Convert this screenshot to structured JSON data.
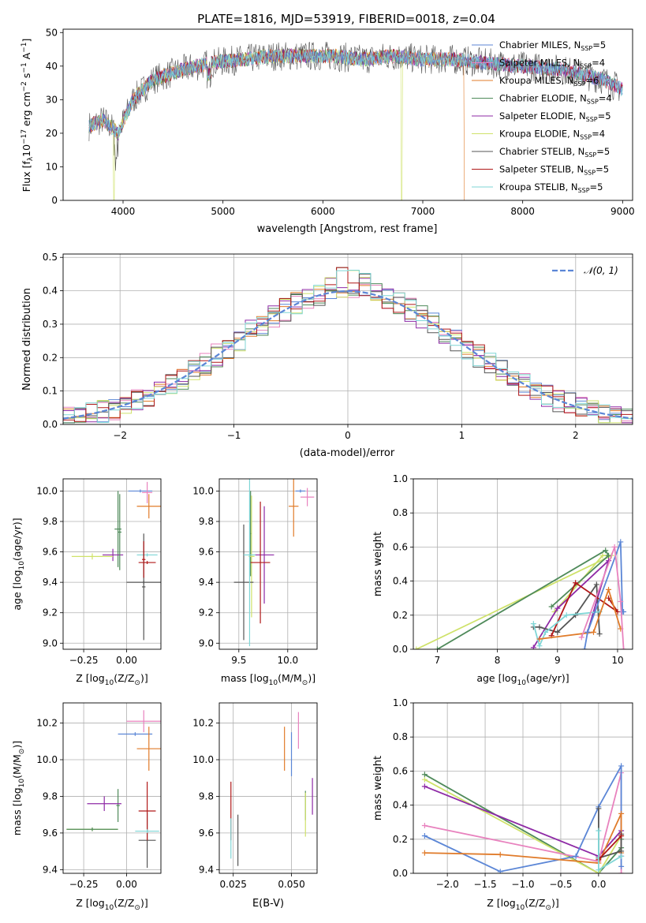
{
  "colors": {
    "chabrier_miles": "#5b86d6",
    "salpeter_miles": "#e882be",
    "kroupa_miles": "#e07b2a",
    "chabrier_elodie": "#4f8a5a",
    "salpeter_elodie": "#8e2aa6",
    "kroupa_elodie": "#cfe26a",
    "chabrier_stelib": "#555555",
    "salpeter_stelib": "#b01818",
    "kroupa_stelib": "#7fd6d6",
    "normal": "#5b86d6",
    "grid": "#b0b0b0"
  },
  "chart_data": [
    {
      "id": "spectrum",
      "type": "line",
      "title": "PLATE=1816, MJD=53919, FIBERID=0018, z=0.04",
      "xlabel": "wavelength [Angstrom, rest frame]",
      "ylabel": "Flux [f_λ10⁻¹⁷ erg cm⁻² s⁻¹ A⁻¹]",
      "ylabel_parts": {
        "a": "Flux [f",
        "b": "λ",
        "c": "10",
        "d": "−17",
        "e": " erg cm",
        "f": "−2",
        "g": " s",
        "h": "−1",
        "i": " A",
        "j": "−1",
        "k": "]"
      },
      "xlim": [
        3400,
        9100
      ],
      "ylim": [
        0,
        51
      ],
      "xticks": [
        "4000",
        "5000",
        "6000",
        "7000",
        "8000",
        "9000"
      ],
      "xtick_values": [
        4000,
        5000,
        6000,
        7000,
        8000,
        9000
      ],
      "yticks": [
        "0",
        "10",
        "20",
        "30",
        "40",
        "50"
      ],
      "ytick_values": [
        0,
        10,
        20,
        30,
        40,
        50
      ],
      "grid": false,
      "legend_position": "right",
      "series": [
        {
          "name": "Chabrier MILES, N_SSP=5",
          "label_main": "Chabrier MILES, N",
          "label_sub": "SSP",
          "label_end": "=5",
          "color_key": "chabrier_miles"
        },
        {
          "name": "Salpeter MILES, N_SSP=4",
          "label_main": "Salpeter MILES, N",
          "label_sub": "SSP",
          "label_end": "=4",
          "color_key": "salpeter_miles"
        },
        {
          "name": "Kroupa MILES, N_SSP=6",
          "label_main": "Kroupa MILES, N",
          "label_sub": "SSP",
          "label_end": "=6",
          "color_key": "kroupa_miles"
        },
        {
          "name": "Chabrier ELODIE, N_SSP=4",
          "label_main": "Chabrier ELODIE, N",
          "label_sub": "SSP",
          "label_end": "=4",
          "color_key": "chabrier_elodie"
        },
        {
          "name": "Salpeter ELODIE, N_SSP=5",
          "label_main": "Salpeter ELODIE, N",
          "label_sub": "SSP",
          "label_end": "=5",
          "color_key": "salpeter_elodie"
        },
        {
          "name": "Kroupa ELODIE, N_SSP=4",
          "label_main": "Kroupa ELODIE, N",
          "label_sub": "SSP",
          "label_end": "=4",
          "color_key": "kroupa_elodie"
        },
        {
          "name": "Chabrier STELIB, N_SSP=5",
          "label_main": "Chabrier STELIB, N",
          "label_sub": "SSP",
          "label_end": "=5",
          "color_key": "chabrier_stelib"
        },
        {
          "name": "Salpeter STELIB, N_SSP=5",
          "label_main": "Salpeter STELIB, N",
          "label_sub": "SSP",
          "label_end": "=5",
          "color_key": "salpeter_stelib"
        },
        {
          "name": "Kroupa STELIB, N_SSP=5",
          "label_main": "Kroupa STELIB, N",
          "label_sub": "SSP",
          "label_end": "=5",
          "color_key": "kroupa_stelib"
        }
      ],
      "approx_continuum": {
        "x": [
          3650,
          3800,
          3950,
          4100,
          4300,
          4600,
          4900,
          5200,
          5500,
          5800,
          6100,
          6400,
          6700,
          7000,
          7300,
          7600,
          8000,
          8400,
          8800,
          9000
        ],
        "y": [
          22,
          24,
          20,
          30,
          36,
          39,
          41,
          42,
          43,
          43,
          43,
          42,
          43,
          42,
          42,
          41,
          40,
          39,
          36,
          33
        ]
      },
      "dropouts": [
        {
          "x": 3910,
          "series": "kroupa_elodie"
        },
        {
          "x": 6790,
          "series": "kroupa_elodie"
        },
        {
          "x": 7420,
          "series": "kroupa_miles"
        }
      ]
    },
    {
      "id": "residuals",
      "type": "step-histogram",
      "xlabel": "(data-model)/error",
      "ylabel": "Normed distribution",
      "xlim": [
        -2.5,
        2.5
      ],
      "ylim": [
        0,
        0.51
      ],
      "xticks": [
        "−2",
        "−1",
        "0",
        "1",
        "2"
      ],
      "xtick_values": [
        -2,
        -1,
        0,
        1,
        2
      ],
      "yticks": [
        "0.0",
        "0.1",
        "0.2",
        "0.3",
        "0.4",
        "0.5"
      ],
      "ytick_values": [
        0,
        0.1,
        0.2,
        0.3,
        0.4,
        0.5
      ],
      "grid": true,
      "legend": {
        "label": "𝒩(0, 1)",
        "position": "top-right"
      },
      "bin_width": 0.1,
      "bin_start": -2.5
    },
    {
      "id": "age-vs-Z",
      "type": "errorbar",
      "xlabel_main": "Z [log",
      "xlabel_sub": "10",
      "xlabel_end": "(Z/Z",
      "ylabel_main": "age  [log",
      "ylabel_sub": "10",
      "ylabel_end": "(age/yr)]",
      "xlim": [
        -0.37,
        0.2
      ],
      "ylim": [
        8.96,
        10.08
      ],
      "xticks": [
        "−0.25",
        "0.00"
      ],
      "xtick_values": [
        -0.25,
        0.0
      ],
      "yticks": [
        "9.0",
        "9.2",
        "9.4",
        "9.6",
        "9.8",
        "10.0"
      ],
      "ytick_values": [
        9.0,
        9.2,
        9.4,
        9.6,
        9.8,
        10.0
      ],
      "grid": true,
      "points": [
        {
          "k": "chabrier_miles",
          "x": 0.08,
          "xe": 0.07,
          "y": 10.0,
          "ye": 0.01
        },
        {
          "k": "salpeter_miles",
          "x": 0.12,
          "xe": 0.03,
          "y": 9.99,
          "ye": 0.07
        },
        {
          "k": "kroupa_miles",
          "x": 0.13,
          "xe": 0.07,
          "y": 9.9,
          "ye": 0.08
        },
        {
          "k": "chabrier_elodie",
          "x": -0.05,
          "xe": 0.02,
          "y": 9.75,
          "ye": 0.25
        },
        {
          "k": "salpeter_elodie",
          "x": -0.08,
          "xe": 0.06,
          "y": 9.58,
          "ye": 0.04
        },
        {
          "k": "kroupa_elodie",
          "x": -0.2,
          "xe": 0.12,
          "y": 9.57,
          "ye": 0.02
        },
        {
          "k": "chabrier_stelib",
          "x": 0.1,
          "xe": 0.1,
          "y": 9.4,
          "ye": 0.01
        },
        {
          "k": "salpeter_stelib",
          "x": 0.12,
          "xe": 0.05,
          "y": 9.53,
          "ye": 0.01
        },
        {
          "k": "kroupa_stelib",
          "x": 0.12,
          "xe": 0.06,
          "y": 9.58,
          "ye": 0.01
        },
        {
          "k": "chabrier_stelib",
          "x": 0.1,
          "xe": 0.01,
          "y": 9.37,
          "ye": 0.35
        },
        {
          "k": "chabrier_elodie",
          "x": -0.04,
          "xe": 0.01,
          "y": 9.73,
          "ye": 0.25
        },
        {
          "k": "salpeter_stelib",
          "x": 0.1,
          "xe": 0.01,
          "y": 9.55,
          "ye": 0.12
        }
      ]
    },
    {
      "id": "age-vs-mass",
      "type": "errorbar",
      "xlabel_main": "mass [log",
      "xlabel_sub": "10",
      "xlabel_end": "(M/M",
      "xlim": [
        9.3,
        10.3
      ],
      "ylim": [
        8.96,
        10.08
      ],
      "xticks": [
        "9.5",
        "10.0"
      ],
      "xtick_values": [
        9.5,
        10.0
      ],
      "yticks": [
        "9.0",
        "9.2",
        "9.4",
        "9.6",
        "9.8",
        "10.0"
      ],
      "ytick_values": [
        9.0,
        9.2,
        9.4,
        9.6,
        9.8,
        10.0
      ],
      "grid": true,
      "points": [
        {
          "k": "chabrier_miles",
          "x": 10.13,
          "xe": 0.05,
          "y": 10.0,
          "ye": 0.01
        },
        {
          "k": "salpeter_miles",
          "x": 10.2,
          "xe": 0.07,
          "y": 9.96,
          "ye": 0.06
        },
        {
          "k": "kroupa_miles",
          "x": 10.06,
          "xe": 0.05,
          "y": 9.9,
          "ye": 0.2
        },
        {
          "k": "chabrier_elodie",
          "x": 9.62,
          "xe": 0.01,
          "y": 9.72,
          "ye": 0.28
        },
        {
          "k": "salpeter_elodie",
          "x": 9.76,
          "xe": 0.1,
          "y": 9.58,
          "ye": 0.32
        },
        {
          "k": "kroupa_elodie",
          "x": 9.63,
          "xe": 0.03,
          "y": 9.57,
          "ye": 0.4
        },
        {
          "k": "chabrier_stelib",
          "x": 9.55,
          "xe": 0.1,
          "y": 9.4,
          "ye": 0.38
        },
        {
          "k": "salpeter_stelib",
          "x": 9.72,
          "xe": 0.1,
          "y": 9.53,
          "ye": 0.4
        },
        {
          "k": "kroupa_stelib",
          "x": 9.61,
          "xe": 0.06,
          "y": 9.58,
          "ye": 0.6
        }
      ]
    },
    {
      "id": "massweight-vs-age",
      "type": "line",
      "xlabel_main": "age  [log",
      "xlabel_sub": "10",
      "xlabel_end": "(age/yr)]",
      "ylabel": "mass weight",
      "xlim": [
        6.6,
        10.25
      ],
      "ylim": [
        0,
        1.0
      ],
      "xticks": [
        "7",
        "8",
        "9",
        "10"
      ],
      "xtick_values": [
        7,
        8,
        9,
        10
      ],
      "yticks": [
        "0.0",
        "0.2",
        "0.4",
        "0.6",
        "0.8",
        "1.0"
      ],
      "ytick_values": [
        0,
        0.2,
        0.4,
        0.6,
        0.8,
        1.0
      ],
      "grid": true,
      "series": [
        {
          "k": "kroupa_elodie",
          "x": [
            6.65,
            9.9,
            9.75,
            8.95
          ],
          "y": [
            0.0,
            0.55,
            0.55,
            0.22
          ]
        },
        {
          "k": "chabrier_elodie",
          "x": [
            7.0,
            9.8,
            9.85,
            8.9
          ],
          "y": [
            0.0,
            0.58,
            0.55,
            0.25
          ]
        },
        {
          "k": "salpeter_elodie",
          "x": [
            8.6,
            9.0,
            9.85,
            9.5
          ],
          "y": [
            0.01,
            0.24,
            0.52,
            0.1
          ]
        },
        {
          "k": "chabrier_stelib",
          "x": [
            8.6,
            8.7,
            9.0,
            9.3,
            9.65,
            9.7
          ],
          "y": [
            0.13,
            0.13,
            0.1,
            0.2,
            0.38,
            0.09
          ]
        },
        {
          "k": "salpeter_stelib",
          "x": [
            8.9,
            9.3,
            10.0,
            9.85
          ],
          "y": [
            0.08,
            0.39,
            0.22,
            0.3
          ]
        },
        {
          "k": "kroupa_stelib",
          "x": [
            8.6,
            8.7,
            8.8,
            9.15,
            9.7
          ],
          "y": [
            0.15,
            0.02,
            0.1,
            0.2,
            0.22
          ]
        },
        {
          "k": "kroupa_miles",
          "x": [
            8.7,
            9.6,
            9.85,
            10.05
          ],
          "y": [
            0.06,
            0.1,
            0.35,
            0.12
          ]
        },
        {
          "k": "chabrier_miles",
          "x": [
            9.45,
            9.5,
            10.05,
            10.08,
            10.1
          ],
          "y": [
            0.0,
            0.1,
            0.63,
            0.22,
            0.22
          ]
        },
        {
          "k": "salpeter_miles",
          "x": [
            9.4,
            9.95,
            10.05,
            10.1
          ],
          "y": [
            0.07,
            0.6,
            0.28,
            0.0
          ]
        }
      ]
    },
    {
      "id": "mass-vs-Z",
      "type": "errorbar",
      "xlabel_main": "Z [log",
      "xlabel_sub": "10",
      "xlabel_end": "(Z/Z",
      "ylabel_main": "mass [log",
      "ylabel_sub": "10",
      "ylabel_end": "(M/M",
      "xlim": [
        -0.37,
        0.2
      ],
      "ylim": [
        9.38,
        10.31
      ],
      "xticks": [
        "−0.25",
        "0.00"
      ],
      "xtick_values": [
        -0.25,
        0.0
      ],
      "yticks": [
        "9.4",
        "9.6",
        "9.8",
        "10.0",
        "10.2"
      ],
      "ytick_values": [
        9.4,
        9.6,
        9.8,
        10.0,
        10.2
      ],
      "grid": true,
      "points": [
        {
          "k": "chabrier_miles",
          "x": 0.05,
          "xe": 0.1,
          "y": 10.14,
          "ye": 0.01
        },
        {
          "k": "salpeter_miles",
          "x": 0.1,
          "xe": 0.1,
          "y": 10.21,
          "ye": 0.06
        },
        {
          "k": "kroupa_miles",
          "x": 0.13,
          "xe": 0.07,
          "y": 10.06,
          "ye": 0.12
        },
        {
          "k": "chabrier_elodie",
          "x": -0.05,
          "xe": 0.01,
          "y": 9.75,
          "ye": 0.09
        },
        {
          "k": "salpeter_elodie",
          "x": -0.13,
          "xe": 0.1,
          "y": 9.76,
          "ye": 0.04
        },
        {
          "k": "kroupa_elodie",
          "x": -0.2,
          "xe": 0.15,
          "y": 9.62,
          "ye": 0.01
        },
        {
          "k": "chabrier_elodie",
          "x": -0.2,
          "xe": 0.15,
          "y": 9.62,
          "ye": 0.01
        },
        {
          "k": "chabrier_stelib",
          "x": 0.12,
          "xe": 0.05,
          "y": 9.56,
          "ye": 0.15
        },
        {
          "k": "salpeter_stelib",
          "x": 0.12,
          "xe": 0.05,
          "y": 9.72,
          "ye": 0.16
        },
        {
          "k": "kroupa_stelib",
          "x": 0.12,
          "xe": 0.07,
          "y": 9.61,
          "ye": 0.01
        }
      ]
    },
    {
      "id": "mass-vs-ebv",
      "type": "errorbar",
      "xlabel": "E(B-V)",
      "xlim": [
        0.019,
        0.061
      ],
      "ylim": [
        9.38,
        10.31
      ],
      "xticks": [
        "0.025",
        "0.050"
      ],
      "xtick_values": [
        0.025,
        0.05
      ],
      "yticks": [
        "9.4",
        "9.6",
        "9.8",
        "10.0",
        "10.2"
      ],
      "ytick_values": [
        9.4,
        9.6,
        9.8,
        10.0,
        10.2
      ],
      "grid": true,
      "points": [
        {
          "k": "chabrier_miles",
          "x": 0.05,
          "xe": 0.0,
          "y": 10.03,
          "ye": 0.12
        },
        {
          "k": "salpeter_miles",
          "x": 0.053,
          "xe": 0.0,
          "y": 10.16,
          "ye": 0.1
        },
        {
          "k": "kroupa_miles",
          "x": 0.047,
          "xe": 0.0,
          "y": 10.06,
          "ye": 0.12
        },
        {
          "k": "chabrier_elodie",
          "x": 0.056,
          "xe": 0.0,
          "y": 9.75,
          "ye": 0.08
        },
        {
          "k": "salpeter_elodie",
          "x": 0.059,
          "xe": 0.0,
          "y": 9.8,
          "ye": 0.1
        },
        {
          "k": "kroupa_elodie",
          "x": 0.056,
          "xe": 0.0,
          "y": 9.7,
          "ye": 0.12
        },
        {
          "k": "chabrier_stelib",
          "x": 0.027,
          "xe": 0.0,
          "y": 9.56,
          "ye": 0.14
        },
        {
          "k": "salpeter_stelib",
          "x": 0.024,
          "xe": 0.0,
          "y": 9.72,
          "ye": 0.16
        },
        {
          "k": "kroupa_stelib",
          "x": 0.024,
          "xe": 0.0,
          "y": 9.57,
          "ye": 0.11
        }
      ]
    },
    {
      "id": "massweight-vs-Z",
      "type": "line",
      "xlabel_main": "Z [log",
      "xlabel_sub": "10",
      "xlabel_end": "(Z/Z",
      "ylabel": "mass weight",
      "xlim": [
        -2.45,
        0.45
      ],
      "ylim": [
        0,
        1.0
      ],
      "xticks": [
        "−2.0",
        "−1.5",
        "−1.0",
        "−0.5",
        "0.0"
      ],
      "xtick_values": [
        -2.0,
        -1.5,
        -1.0,
        -0.5,
        0.0
      ],
      "yticks": [
        "0.0",
        "0.2",
        "0.4",
        "0.6",
        "0.8",
        "1.0"
      ],
      "ytick_values": [
        0,
        0.2,
        0.4,
        0.6,
        0.8,
        1.0
      ],
      "grid": true,
      "series": [
        {
          "k": "chabrier_elodie",
          "x": [
            -2.3,
            0.0,
            0.3,
            0.3
          ],
          "y": [
            0.58,
            0.0,
            0.15,
            0.2
          ]
        },
        {
          "k": "kroupa_elodie",
          "x": [
            -2.3,
            0.0,
            0.3
          ],
          "y": [
            0.55,
            0.0,
            0.22
          ]
        },
        {
          "k": "salpeter_elodie",
          "x": [
            -2.3,
            0.0,
            0.3,
            0.3
          ],
          "y": [
            0.51,
            0.1,
            0.25,
            0.1
          ]
        },
        {
          "k": "salpeter_miles",
          "x": [
            -2.3,
            0.0,
            0.3,
            0.3
          ],
          "y": [
            0.28,
            0.07,
            0.59,
            0.0
          ]
        },
        {
          "k": "chabrier_miles",
          "x": [
            -2.3,
            -1.3,
            -0.3,
            0.0,
            0.3,
            0.3
          ],
          "y": [
            0.22,
            0.01,
            0.1,
            0.39,
            0.63,
            0.04
          ]
        },
        {
          "k": "kroupa_miles",
          "x": [
            -2.3,
            -1.3,
            0.0,
            0.3,
            0.3
          ],
          "y": [
            0.12,
            0.11,
            0.06,
            0.35,
            0.12
          ]
        },
        {
          "k": "chabrier_stelib",
          "x": [
            0.0,
            0.0,
            0.3,
            0.3
          ],
          "y": [
            0.38,
            0.09,
            0.13,
            0.23
          ]
        },
        {
          "k": "salpeter_stelib",
          "x": [
            0.0,
            0.3
          ],
          "y": [
            0.08,
            0.22
          ]
        },
        {
          "k": "kroupa_stelib",
          "x": [
            0.0,
            0.0,
            0.3
          ],
          "y": [
            0.25,
            0.02,
            0.1
          ]
        }
      ]
    }
  ]
}
